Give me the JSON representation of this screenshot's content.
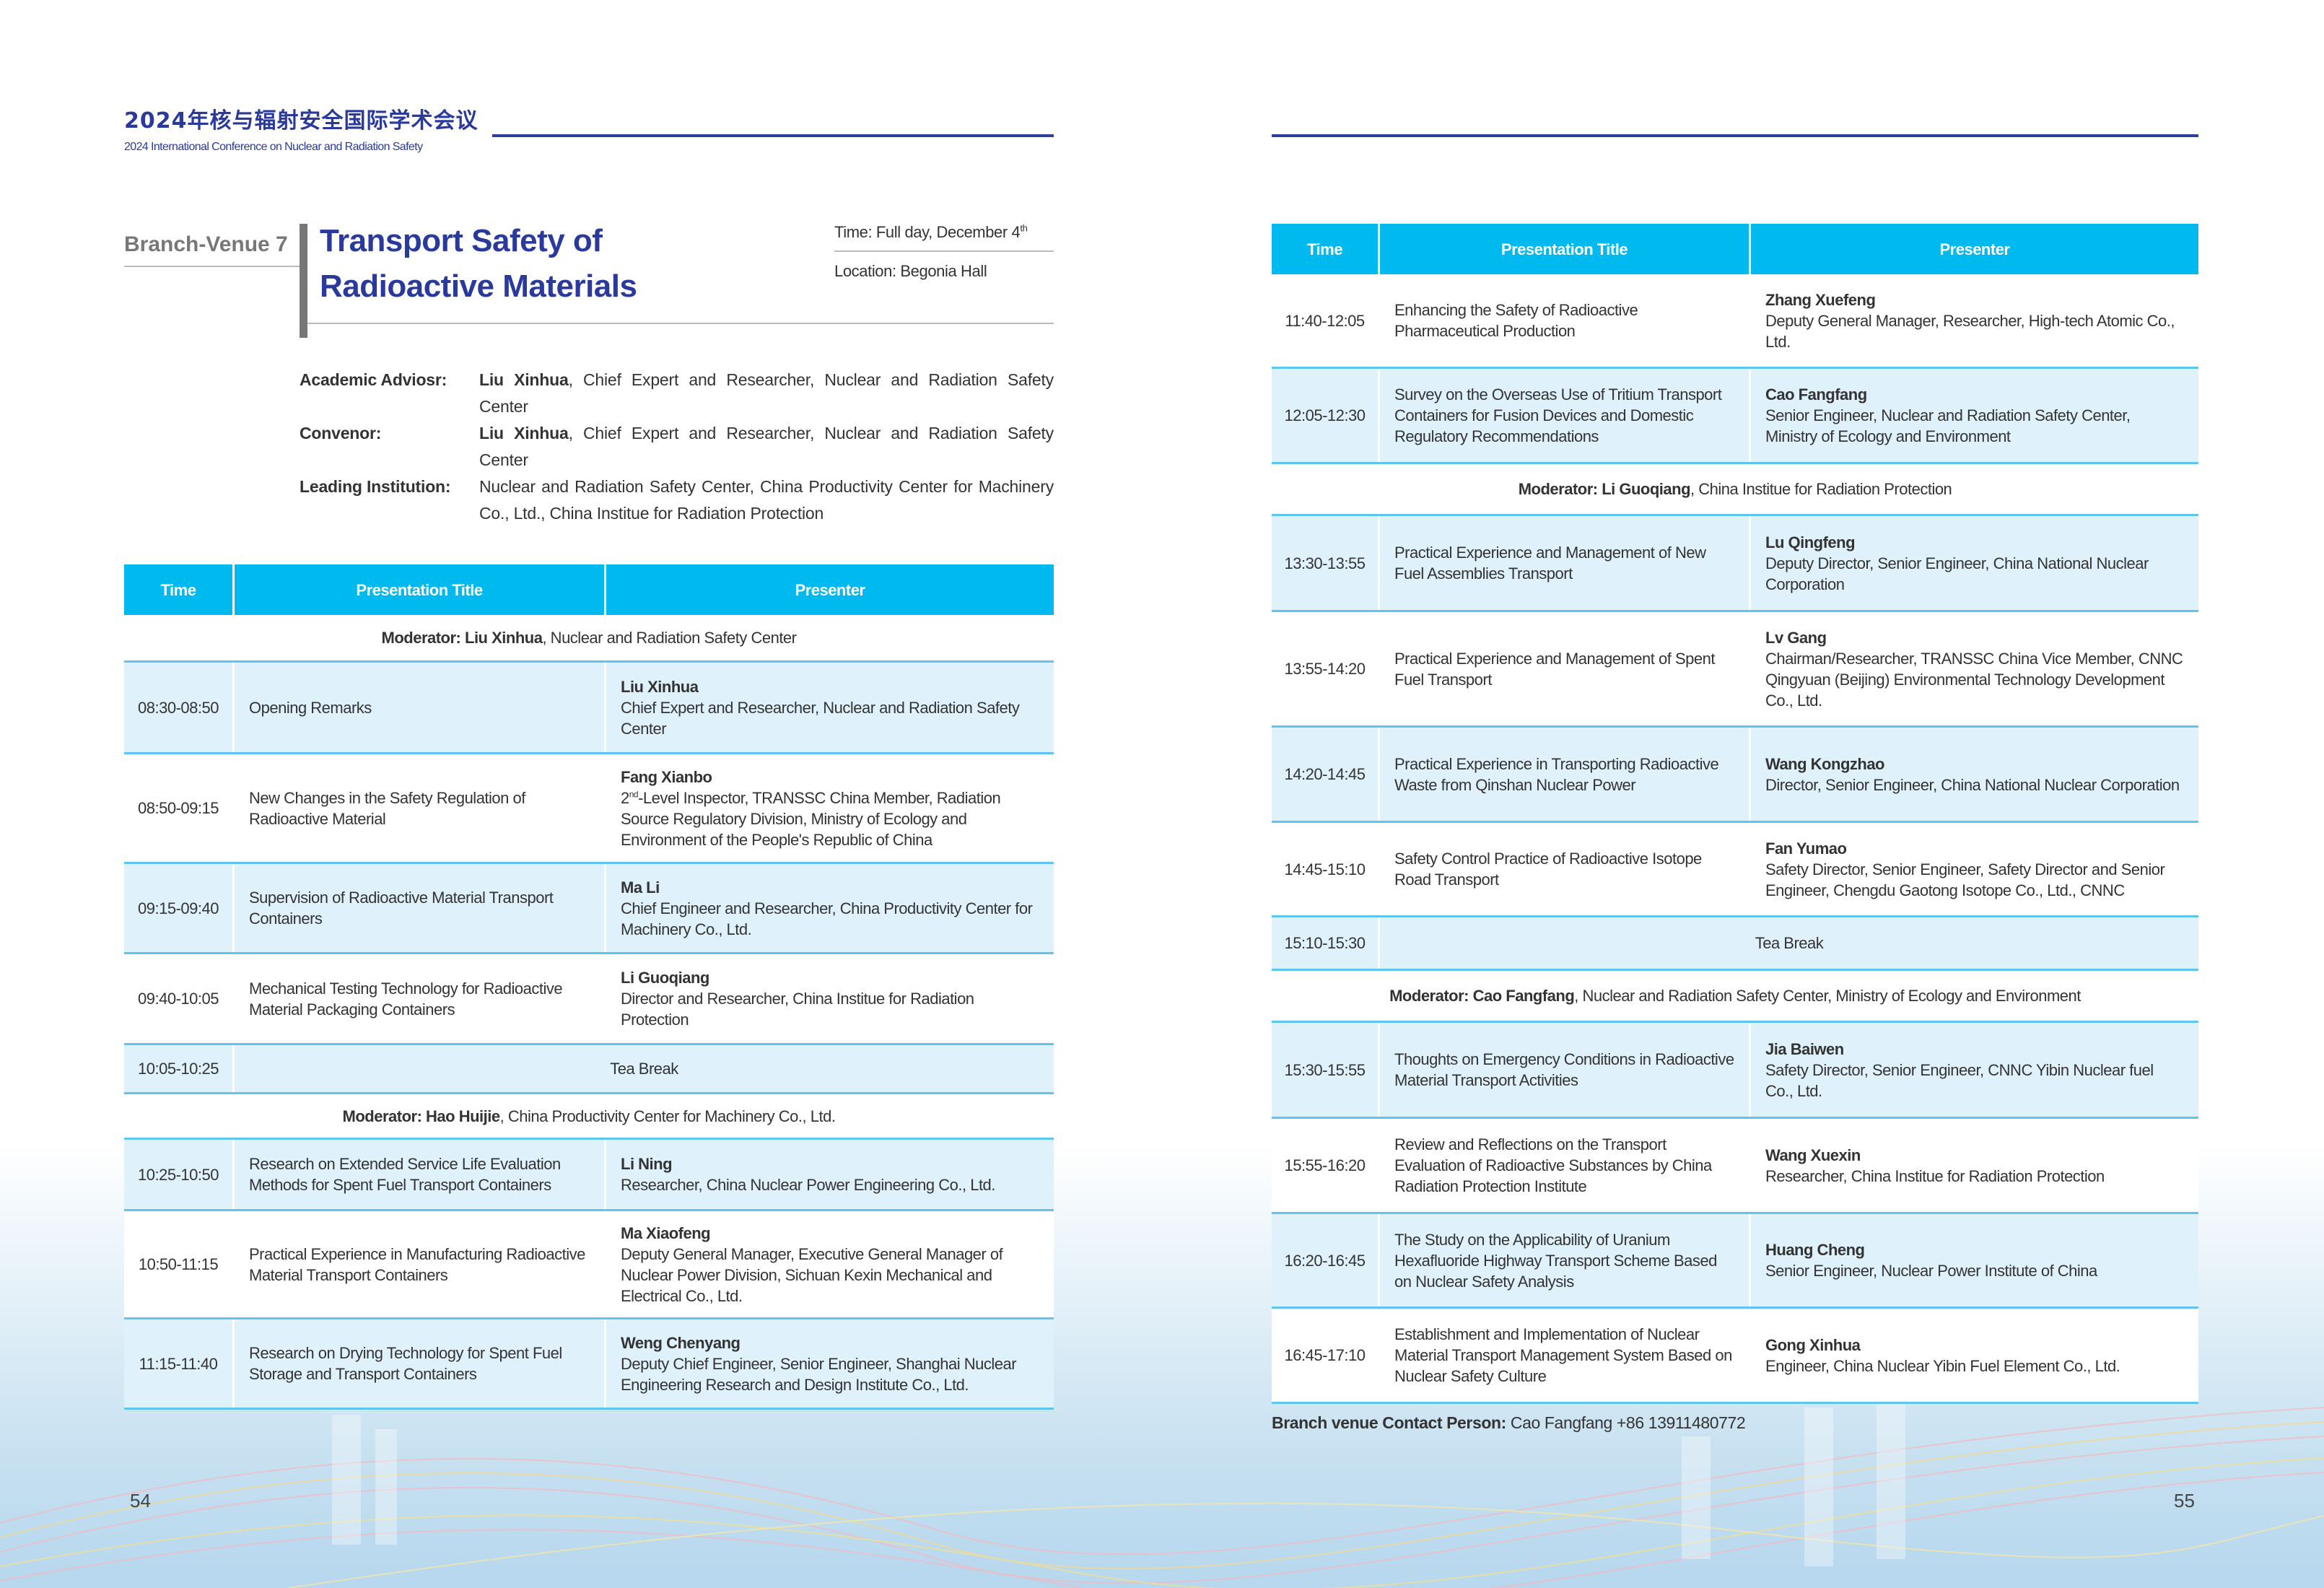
{
  "header": {
    "cn_title": "2024年核与辐射安全国际学术会议",
    "en_subtitle": "2024 International Conference on Nuclear and Radiation Safety"
  },
  "session": {
    "venue": "Branch-Venue 7",
    "title_line1": "Transport Safety of",
    "title_line2": "Radioactive Materials",
    "time_text": "Time: Full day, December 4",
    "time_sup": "th",
    "location": "Location: Begonia Hall"
  },
  "info": [
    {
      "label": "Academic Adviosr:",
      "bold": "Liu Xinhua",
      "rest": ", Chief Expert and Researcher, Nuclear and Radiation Safety Center"
    },
    {
      "label": "Convenor:",
      "bold": "Liu Xinhua",
      "rest": ", Chief Expert and Researcher, Nuclear and Radiation Safety Center"
    },
    {
      "label": "Leading Institution:",
      "bold": "",
      "rest": "Nuclear and Radiation Safety Center, China Productivity Center for Machinery Co., Ltd., China Institue for Radiation Protection"
    }
  ],
  "table_headers": {
    "time": "Time",
    "title": "Presentation Title",
    "presenter": "Presenter"
  },
  "left_table": [
    {
      "type": "moderator",
      "bold": "Moderator: Liu Xinhua",
      "rest": ", Nuclear and Radiation Safety Center"
    },
    {
      "type": "talk",
      "time": "08:30-08:50",
      "title": "Opening Remarks",
      "name": "Liu Xinhua",
      "affil": "Chief Expert and Researcher, Nuclear and Radiation Safety Center"
    },
    {
      "type": "talk",
      "time": "08:50-09:15",
      "title": "New Changes in the Safety Regulation of Radioactive Material",
      "name": "Fang Xianbo",
      "affil_pre": "2",
      "affil_sup": "nd",
      "affil": "-Level Inspector, TRANSSC China Member, Radiation Source Regulatory Division, Ministry of Ecology and Environment of the People's Republic of China"
    },
    {
      "type": "talk",
      "time": "09:15-09:40",
      "title": "Supervision of Radioactive Material Transport Containers",
      "name": "Ma Li",
      "affil": "Chief Engineer and Researcher, China Productivity Center for Machinery Co., Ltd."
    },
    {
      "type": "talk",
      "time": "09:40-10:05",
      "title": "Mechanical Testing Technology for Radioactive Material Packaging Containers",
      "name": "Li Guoqiang",
      "affil": "Director and Researcher, China Institue for Radiation Protection"
    },
    {
      "type": "break",
      "time": "10:05-10:25",
      "title": "Tea Break"
    },
    {
      "type": "moderator",
      "bold": "Moderator: Hao Huijie",
      "rest": ", China Productivity Center for Machinery Co., Ltd."
    },
    {
      "type": "talk",
      "time": "10:25-10:50",
      "title": "Research on Extended Service Life Evaluation Methods for Spent Fuel Transport Containers",
      "name": "Li Ning",
      "affil": "Researcher, China Nuclear Power Engineering Co., Ltd."
    },
    {
      "type": "talk",
      "time": "10:50-11:15",
      "title": "Practical Experience in Manufacturing Radioactive Material Transport Containers",
      "name": "Ma Xiaofeng",
      "affil": "Deputy General Manager, Executive General Manager of Nuclear Power Division, Sichuan Kexin Mechanical and Electrical Co., Ltd."
    },
    {
      "type": "talk",
      "time": "11:15-11:40",
      "title": "Research on Drying Technology for Spent Fuel Storage and Transport Containers",
      "name": "Weng Chenyang",
      "affil": "Deputy Chief Engineer, Senior Engineer, Shanghai Nuclear Engineering Research and Design Institute Co., Ltd."
    }
  ],
  "right_table": [
    {
      "type": "talk",
      "time": "11:40-12:05",
      "title": "Enhancing the Safety of Radioactive Pharmaceutical Production",
      "name": "Zhang Xuefeng",
      "affil": "Deputy General Manager, Researcher, High-tech  Atomic Co., Ltd."
    },
    {
      "type": "talk",
      "time": "12:05-12:30",
      "title": "Survey on the Overseas Use of Tritium Transport Containers for Fusion Devices and Domestic Regulatory Recommendations",
      "name": "Cao Fangfang",
      "affil": "Senior Engineer, Nuclear and Radiation Safety Center, Ministry of Ecology and Environment"
    },
    {
      "type": "moderator",
      "bold": "Moderator: Li Guoqiang",
      "rest": ", China Institue for Radiation Protection"
    },
    {
      "type": "talk",
      "time": "13:30-13:55",
      "title": "Practical Experience and Management of New Fuel Assemblies Transport",
      "name": "Lu Qingfeng",
      "affil": "Deputy Director, Senior Engineer, China National Nuclear Corporation"
    },
    {
      "type": "talk",
      "time": "13:55-14:20",
      "title": "Practical Experience and Management of Spent Fuel Transport",
      "name": "Lv Gang",
      "affil": "Chairman/Researcher, TRANSSC China Vice Member, CNNC Qingyuan (Beijing) Environmental Technology Development Co., Ltd."
    },
    {
      "type": "talk",
      "time": "14:20-14:45",
      "title": "Practical Experience in Transporting Radioactive Waste from Qinshan Nuclear Power",
      "name": "Wang Kongzhao",
      "affil": "Director, Senior Engineer, China National Nuclear Corporation"
    },
    {
      "type": "talk",
      "time": "14:45-15:10",
      "title": "Safety Control Practice of Radioactive Isotope Road Transport",
      "name": "Fan Yumao",
      "affil": "Safety Director, Senior Engineer, Safety Director and Senior Engineer, Chengdu Gaotong Isotope Co., Ltd., CNNC"
    },
    {
      "type": "break",
      "time": "15:10-15:30",
      "title": "Tea Break"
    },
    {
      "type": "moderator",
      "bold": "Moderator: Cao Fangfang",
      "rest": ", Nuclear and Radiation Safety Center, Ministry of Ecology and Environment"
    },
    {
      "type": "talk",
      "time": "15:30-15:55",
      "title": "Thoughts on Emergency Conditions in Radioactive Material Transport Activities",
      "name": "Jia Baiwen",
      "affil": "Safety Director, Senior Engineer, CNNC Yibin Nuclear fuel Co., Ltd."
    },
    {
      "type": "talk",
      "time": "15:55-16:20",
      "title": "Review and Reflections on the Transport Evaluation of Radioactive Substances by China Radiation Protection Institute",
      "name": "Wang Xuexin",
      "affil": "Researcher, China Institue for Radiation Protection"
    },
    {
      "type": "talk",
      "time": "16:20-16:45",
      "title": "The Study on the Applicability of Uranium Hexafluoride Highway Transport Scheme Based on Nuclear Safety Analysis",
      "name": "Huang Cheng",
      "affil": "Senior Engineer, Nuclear Power Institute of China"
    },
    {
      "type": "talk",
      "time": "16:45-17:10",
      "title": "Establishment and Implementation of Nuclear Material Transport Management System Based on Nuclear Safety Culture",
      "name": "Gong Xinhua",
      "affil": "Engineer, China Nuclear Yibin Fuel Element Co., Ltd."
    }
  ],
  "contact": {
    "label": "Branch venue Contact Person:",
    "value": " Cao Fangfang  +86 13911480772"
  },
  "page_numbers": {
    "left": "54",
    "right": "55"
  },
  "colors": {
    "brand_blue": "#2a3a9c",
    "table_header": "#00b9ef",
    "row_stripe": "#dff2fb"
  }
}
